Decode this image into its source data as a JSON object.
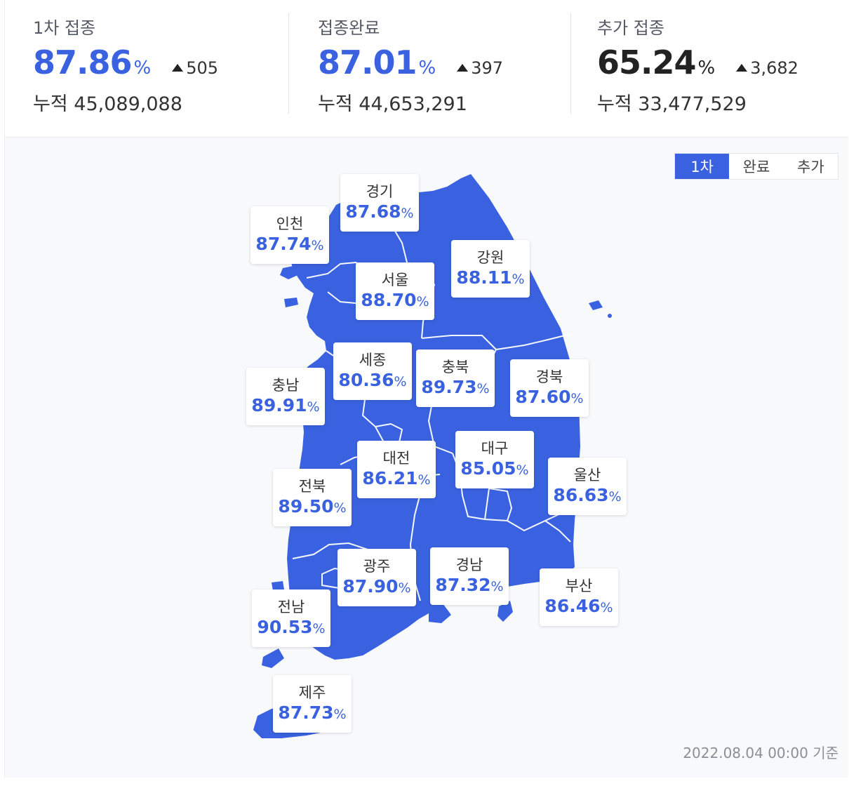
{
  "stats": [
    {
      "label": "1차 접종",
      "rate": "87.86",
      "pct": "%",
      "delta": "505",
      "cum_label": "누적",
      "cum": "45,089,088",
      "tone": "blue"
    },
    {
      "label": "접종완료",
      "rate": "87.01",
      "pct": "%",
      "delta": "397",
      "cum_label": "누적",
      "cum": "44,653,291",
      "tone": "blue"
    },
    {
      "label": "추가 접종",
      "rate": "65.24",
      "pct": "%",
      "delta": "3,682",
      "cum_label": "누적",
      "cum": "33,477,529",
      "tone": "dark"
    }
  ],
  "toggle": [
    {
      "label": "1차",
      "active": true
    },
    {
      "label": "완료",
      "active": false
    },
    {
      "label": "추가",
      "active": false
    }
  ],
  "regions": [
    {
      "name": "경기",
      "value": "87.68"
    },
    {
      "name": "인천",
      "value": "87.74"
    },
    {
      "name": "강원",
      "value": "88.11"
    },
    {
      "name": "서울",
      "value": "88.70"
    },
    {
      "name": "세종",
      "value": "80.36"
    },
    {
      "name": "충북",
      "value": "89.73"
    },
    {
      "name": "경북",
      "value": "87.60"
    },
    {
      "name": "충남",
      "value": "89.91"
    },
    {
      "name": "대전",
      "value": "86.21"
    },
    {
      "name": "대구",
      "value": "85.05"
    },
    {
      "name": "울산",
      "value": "86.63"
    },
    {
      "name": "전북",
      "value": "89.50"
    },
    {
      "name": "광주",
      "value": "87.90"
    },
    {
      "name": "경남",
      "value": "87.32"
    },
    {
      "name": "부산",
      "value": "86.46"
    },
    {
      "name": "전남",
      "value": "90.53"
    },
    {
      "name": "제주",
      "value": "87.73"
    }
  ],
  "pct_symbol": "%",
  "timestamp": "2022.08.04 00:00 기준",
  "colors": {
    "accent": "#3a62e0",
    "map_fill": "#3a62e0"
  }
}
